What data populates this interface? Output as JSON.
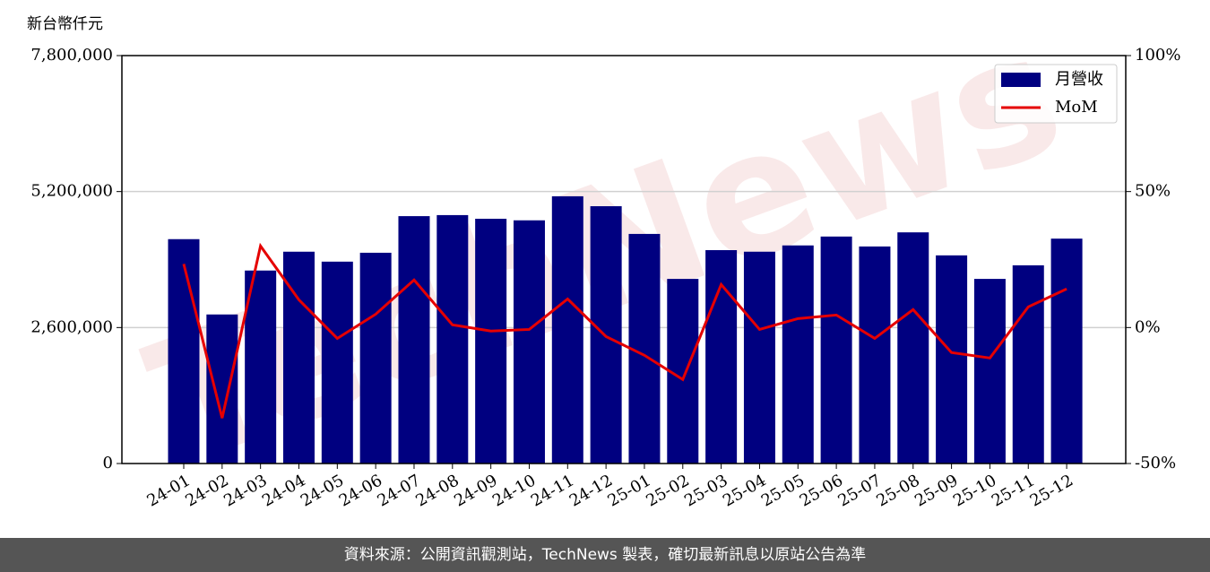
{
  "chart_data": {
    "type": "bar-line",
    "y_axis_label": "新台幣仟元",
    "watermark": "TechNews",
    "categories": [
      "24-01",
      "24-02",
      "24-03",
      "24-04",
      "24-05",
      "24-06",
      "24-07",
      "24-08",
      "24-09",
      "24-10",
      "24-11",
      "24-12",
      "25-01",
      "25-02",
      "25-03",
      "25-04",
      "25-05",
      "25-06",
      "25-07",
      "25-08",
      "25-09",
      "25-10",
      "25-11",
      "25-12"
    ],
    "series": [
      {
        "name": "月營收",
        "type": "bar",
        "color": "#000080",
        "values": [
          4290000,
          2850000,
          3690000,
          4050000,
          3860000,
          4030000,
          4730000,
          4750000,
          4680000,
          4650000,
          5110000,
          4920000,
          4390000,
          3530000,
          4080000,
          4050000,
          4170000,
          4340000,
          4150000,
          4420000,
          3980000,
          3530000,
          3790000,
          4300000
        ]
      },
      {
        "name": "MoM",
        "type": "line",
        "axis": "y2",
        "color": "#e50000",
        "values": [
          23.4,
          -33.3,
          30,
          10.2,
          -4,
          4.9,
          17.5,
          1,
          -1.3,
          -0.7,
          10.5,
          -3.3,
          -10.2,
          -19.1,
          15.8,
          -0.7,
          3.3,
          4.6,
          -4,
          6.6,
          -9.2,
          -11.2,
          7.6,
          14.2
        ]
      }
    ],
    "ylim": [
      0,
      7800000
    ],
    "yticks": [
      0,
      {
        "value": 2600000,
        "label": "2,600,000"
      },
      {
        "value": 5200000,
        "label": "5,200,000"
      },
      {
        "value": 7800000,
        "label": "7,800,000"
      }
    ],
    "y2lim": [
      -50,
      100
    ],
    "y2ticks": [
      {
        "value": -50,
        "label": "-50%"
      },
      {
        "value": 0,
        "label": "0%"
      },
      {
        "value": 50,
        "label": "50%"
      },
      {
        "value": 100,
        "label": "100%"
      }
    ],
    "grid": true,
    "legend": "upper right",
    "footer": "資料來源：公開資訊觀測站，TechNews 製表，確切最新訊息以原站公告為準"
  }
}
